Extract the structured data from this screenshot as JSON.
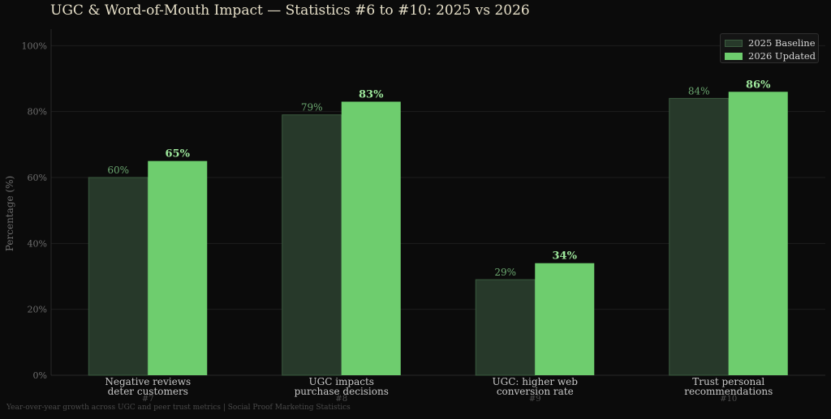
{
  "title": "UGC & Word-of-Mouth Impact — Statistics #6 to #10: 2025 vs 2026",
  "footer": "Year-over-year growth across UGC and peer trust metrics   |   Social Proof Marketing Statistics",
  "colors": {
    "baseline_fill": "#27392a",
    "baseline_edge": "#3a5a3e",
    "baseline_label": "#6aa66f",
    "updated_fill": "#6ecd6e",
    "updated_label": "#9ee89c",
    "background": "#0b0b0b",
    "grid": "#1e1e1e",
    "tick_text": "#6e6e6e",
    "category_text": "#c8c8c8",
    "sub_text": "#4e4e4e"
  },
  "chart_data": {
    "type": "bar",
    "title": "UGC & Word-of-Mouth Impact — Statistics #6 to #10: 2025 vs 2026",
    "xlabel": "",
    "ylabel": "Percentage (%)",
    "ylim": [
      0,
      105
    ],
    "yticks": [
      0,
      20,
      40,
      60,
      80,
      100
    ],
    "ytick_labels": [
      "0%",
      "20%",
      "40%",
      "60%",
      "80%",
      "100%"
    ],
    "grid": true,
    "legend_position": "top-right",
    "categories": [
      "Negative reviews\ndeter customers",
      "UGC impacts\npurchase decisions",
      "UGC: higher web\nconversion rate",
      "Trust personal\nrecommendations"
    ],
    "category_ids": [
      "#7",
      "#8",
      "#9",
      "#10"
    ],
    "series": [
      {
        "name": "2025 Baseline",
        "values": [
          60,
          79,
          29,
          84
        ],
        "labels": [
          "60%",
          "79%",
          "29%",
          "84%"
        ]
      },
      {
        "name": "2026 Updated",
        "values": [
          65,
          83,
          34,
          86
        ],
        "labels": [
          "65%",
          "83%",
          "34%",
          "86%"
        ]
      }
    ]
  }
}
